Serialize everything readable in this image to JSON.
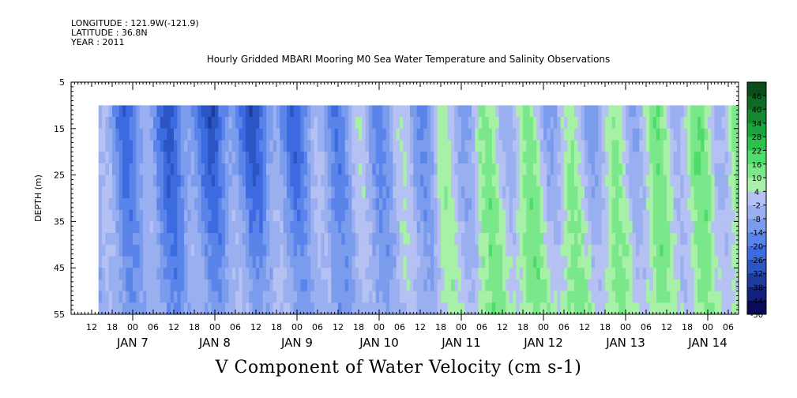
{
  "header": {
    "longitude": "LONGITUDE : 121.9W(-121.9)",
    "latitude": "LATITUDE : 36.8N",
    "year": "YEAR : 2011"
  },
  "chart_data": {
    "type": "heatmap",
    "title": "Hourly Gridded MBARI Mooring M0 Sea Water Temperature and Salinity Observations",
    "xlabel": "V Component of Water Velocity (cm s-1)",
    "ylabel": "DEPTH (m)",
    "y_ticks": [
      5,
      15,
      25,
      35,
      45,
      55
    ],
    "ylim": [
      55,
      5
    ],
    "y_reversed": true,
    "data_depth_range": [
      10,
      55
    ],
    "x_hour_ticks": [
      "12",
      "18",
      "00",
      "06",
      "12",
      "18",
      "00",
      "06",
      "12",
      "18",
      "00",
      "06",
      "12",
      "18",
      "00",
      "06",
      "12",
      "18",
      "00",
      "06",
      "12",
      "18",
      "00",
      "06",
      "12",
      "18",
      "00",
      "06",
      "12",
      "18",
      "00",
      "06"
    ],
    "x_day_labels": [
      "JAN  7",
      "JAN  8",
      "JAN  9",
      "JAN 10",
      "JAN 11",
      "JAN 12",
      "JAN 13",
      "JAN 14"
    ],
    "x_range": [
      "2011-01-06T06:00",
      "2011-01-14T09:00"
    ],
    "data_start": "2011-01-06T14:00",
    "colorbar": {
      "levels": [
        -50,
        -44,
        -38,
        -32,
        -26,
        -20,
        -14,
        -8,
        -2,
        4,
        10,
        16,
        22,
        28,
        34,
        40,
        46
      ],
      "colors": [
        "#0a0a5a",
        "#14207e",
        "#1e3ca0",
        "#2a55c2",
        "#3c6ae0",
        "#5a84ea",
        "#7b9ced",
        "#9aaff0",
        "#b5c0f3",
        "#a6f0a8",
        "#7ae88a",
        "#4fdc6a",
        "#2cc250",
        "#1aa53e",
        "#14882f",
        "#0f6a24",
        "#0a4d1a"
      ]
    },
    "v_velocity_profile_by_day": [
      {
        "day": "JAN  7",
        "surface": -10,
        "bottom": -6
      },
      {
        "day": "JAN  8",
        "surface": -20,
        "bottom": -10
      },
      {
        "day": "JAN  9",
        "surface": -22,
        "bottom": -4
      },
      {
        "day": "JAN 10",
        "surface": -8,
        "bottom": -8
      },
      {
        "day": "JAN 11",
        "surface": -6,
        "bottom": -2
      },
      {
        "day": "JAN 12",
        "surface": 4,
        "bottom": 10
      },
      {
        "day": "JAN 13",
        "surface": -4,
        "bottom": 8
      },
      {
        "day": "JAN 14",
        "surface": 6,
        "bottom": 6
      }
    ]
  }
}
